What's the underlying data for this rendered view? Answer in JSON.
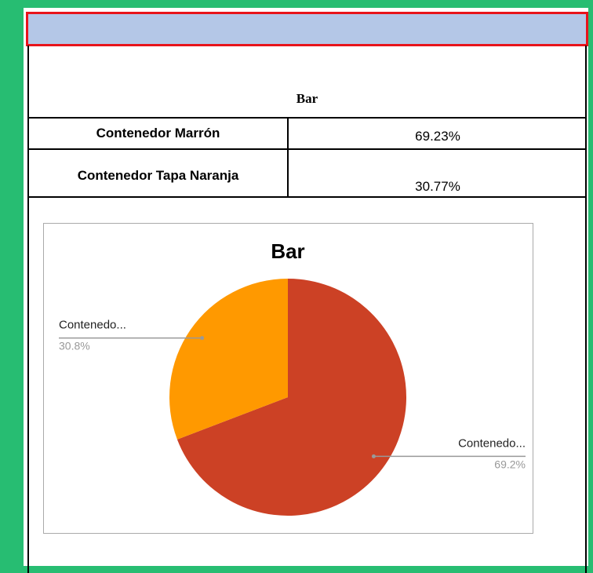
{
  "header": {
    "title": "Bar"
  },
  "table": {
    "rows": [
      [
        "Contenedor Marrón",
        "69.23%"
      ],
      [
        "Contenedor Tapa Naranja",
        "30.77%"
      ]
    ]
  },
  "chart_data": {
    "type": "pie",
    "title": "Bar",
    "categories": [
      "Contenedo...",
      "Contenedo..."
    ],
    "values": [
      69.2,
      30.8
    ],
    "value_labels": [
      "69.2%",
      "30.8%"
    ],
    "colors": [
      "#cc4125",
      "#ff9900"
    ]
  }
}
